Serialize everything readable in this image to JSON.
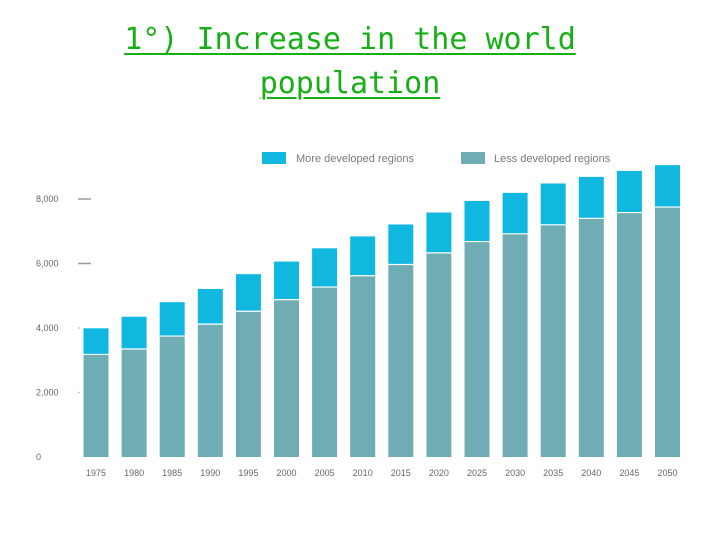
{
  "page": {
    "title_line1": "1°) Increase in the world",
    "title_line2": "population",
    "title_color": "#16b016"
  },
  "chart_data": {
    "type": "bar",
    "stacked": true,
    "categories": [
      "1975",
      "1980",
      "1985",
      "1990",
      "1995",
      "2000",
      "2005",
      "2010",
      "2015",
      "2020",
      "2025",
      "2030",
      "2035",
      "2040",
      "2045",
      "2050"
    ],
    "series": [
      {
        "name": "More developed regions",
        "color": "#10b8e0",
        "values": [
          810,
          1000,
          1050,
          1090,
          1150,
          1180,
          1200,
          1220,
          1240,
          1250,
          1260,
          1270,
          1280,
          1285,
          1290,
          1300
        ]
      },
      {
        "name": "Less developed regions",
        "color": "#70acb3",
        "values": [
          3180,
          3350,
          3750,
          4120,
          4520,
          4880,
          5270,
          5620,
          5970,
          6330,
          6680,
          6920,
          7200,
          7400,
          7580,
          7750
        ]
      }
    ],
    "yticks": [
      "0",
      "2,000",
      "4,000",
      "6,000",
      "8,000"
    ],
    "ylim": [
      0,
      8900
    ],
    "grid": false,
    "legend_position": "top-center"
  }
}
